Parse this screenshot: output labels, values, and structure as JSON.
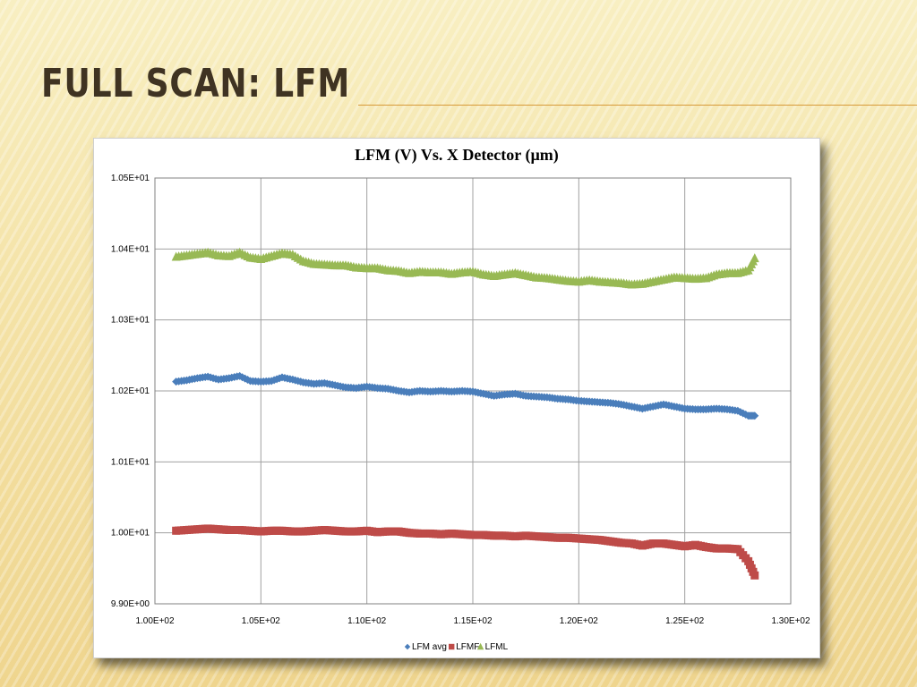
{
  "slide": {
    "title": "FULL SCAN: LFM"
  },
  "colors": {
    "lfm_avg": "#4a7ebb",
    "lfmf": "#be4b48",
    "lfml": "#98b954",
    "grid": "#a0a0a0"
  },
  "chart_data": {
    "type": "scatter",
    "title": "LFM (V) Vs. X Detector (µm)",
    "xlabel": "",
    "ylabel": "",
    "xlim": [
      100,
      130
    ],
    "ylim": [
      9.9,
      10.5
    ],
    "grid": true,
    "legend_position": "bottom",
    "x_tick_labels": [
      "1.00E+02",
      "1.05E+02",
      "1.10E+02",
      "1.15E+02",
      "1.20E+02",
      "1.25E+02",
      "1.30E+02"
    ],
    "y_tick_labels": [
      "9.90E+00",
      "1.00E+01",
      "1.01E+01",
      "1.02E+01",
      "1.03E+01",
      "1.04E+01",
      "1.05E+01"
    ],
    "x": [
      101.0,
      101.5,
      102.0,
      102.5,
      103.0,
      103.5,
      104.0,
      104.5,
      105.0,
      105.5,
      106.0,
      106.5,
      107.0,
      107.5,
      108.0,
      108.5,
      109.0,
      109.5,
      110.0,
      110.5,
      111.0,
      111.5,
      112.0,
      112.5,
      113.0,
      113.5,
      114.0,
      114.5,
      115.0,
      115.5,
      116.0,
      116.5,
      117.0,
      117.5,
      118.0,
      118.5,
      119.0,
      119.5,
      120.0,
      120.5,
      121.0,
      121.5,
      122.0,
      122.5,
      123.0,
      123.5,
      124.0,
      124.5,
      125.0,
      125.5,
      126.0,
      126.5,
      127.0,
      127.5,
      128.0,
      128.3
    ],
    "series": [
      {
        "name": "LFM avg",
        "marker": "diamond",
        "values": [
          10.213,
          10.215,
          10.218,
          10.22,
          10.216,
          10.218,
          10.221,
          10.214,
          10.213,
          10.214,
          10.219,
          10.216,
          10.212,
          10.21,
          10.211,
          10.208,
          10.205,
          10.204,
          10.206,
          10.204,
          10.203,
          10.2,
          10.198,
          10.2,
          10.199,
          10.2,
          10.199,
          10.2,
          10.199,
          10.196,
          10.193,
          10.195,
          10.196,
          10.193,
          10.192,
          10.191,
          10.189,
          10.188,
          10.186,
          10.185,
          10.184,
          10.183,
          10.181,
          10.178,
          10.175,
          10.178,
          10.181,
          10.178,
          10.175,
          10.174,
          10.174,
          10.175,
          10.174,
          10.172,
          10.165,
          10.165
        ]
      },
      {
        "name": "LFMF",
        "marker": "square",
        "values": [
          10.003,
          10.004,
          10.005,
          10.006,
          10.005,
          10.004,
          10.004,
          10.003,
          10.002,
          10.003,
          10.003,
          10.002,
          10.002,
          10.003,
          10.004,
          10.003,
          10.002,
          10.002,
          10.003,
          10.001,
          10.002,
          10.002,
          10.0,
          9.999,
          9.999,
          9.998,
          9.999,
          9.998,
          9.997,
          9.997,
          9.996,
          9.996,
          9.995,
          9.996,
          9.995,
          9.994,
          9.993,
          9.993,
          9.992,
          9.991,
          9.99,
          9.988,
          9.986,
          9.985,
          9.982,
          9.985,
          9.985,
          9.983,
          9.981,
          9.983,
          9.98,
          9.978,
          9.978,
          9.977,
          9.96,
          9.94
        ]
      },
      {
        "name": "LFML",
        "marker": "triangle",
        "values": [
          10.389,
          10.391,
          10.393,
          10.395,
          10.391,
          10.39,
          10.395,
          10.388,
          10.386,
          10.39,
          10.394,
          10.392,
          10.383,
          10.379,
          10.378,
          10.377,
          10.377,
          10.374,
          10.373,
          10.373,
          10.37,
          10.369,
          10.366,
          10.368,
          10.367,
          10.367,
          10.365,
          10.367,
          10.368,
          10.364,
          10.362,
          10.364,
          10.366,
          10.363,
          10.36,
          10.359,
          10.357,
          10.355,
          10.354,
          10.356,
          10.354,
          10.353,
          10.352,
          10.35,
          10.351,
          10.354,
          10.357,
          10.36,
          10.359,
          10.358,
          10.359,
          10.364,
          10.366,
          10.366,
          10.37,
          10.387
        ]
      }
    ]
  }
}
